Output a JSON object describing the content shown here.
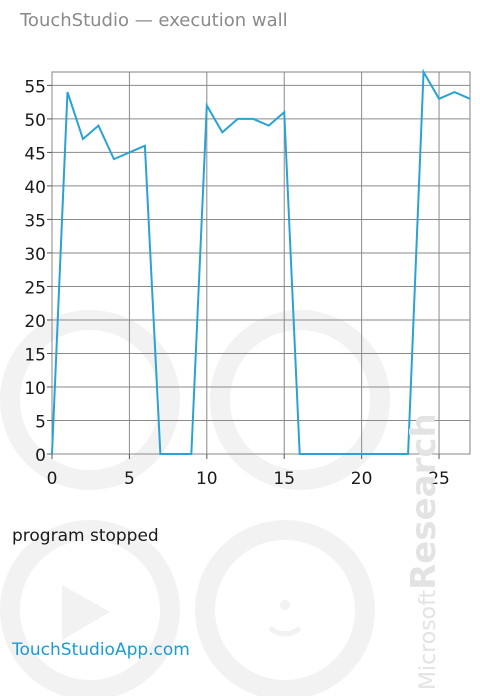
{
  "header": {
    "title": "TouchStudio — execution wall"
  },
  "chart_data": {
    "type": "line",
    "x": [
      0,
      1,
      2,
      3,
      4,
      5,
      6,
      7,
      8,
      9,
      10,
      11,
      12,
      13,
      14,
      15,
      16,
      17,
      18,
      19,
      20,
      21,
      22,
      23,
      24,
      25,
      26,
      27
    ],
    "series": [
      {
        "values": [
          0,
          54,
          47,
          49,
          44,
          45,
          46,
          0,
          0,
          0,
          52,
          48,
          50,
          50,
          49,
          51,
          0,
          0,
          0,
          0,
          0,
          0,
          0,
          0,
          57,
          53,
          54,
          53
        ]
      }
    ],
    "x_ticks": [
      0,
      5,
      10,
      15,
      20,
      25
    ],
    "y_ticks": [
      0,
      5,
      10,
      15,
      20,
      25,
      30,
      35,
      40,
      45,
      50,
      55
    ],
    "xlim": [
      0,
      27
    ],
    "ylim": [
      0,
      57
    ],
    "grid": true,
    "line_color": "#2aa2d6"
  },
  "status": {
    "text": "program stopped"
  },
  "footer": {
    "link": "TouchStudioApp.com"
  },
  "branding": {
    "vendor": "Microsoft",
    "division": "Research"
  }
}
